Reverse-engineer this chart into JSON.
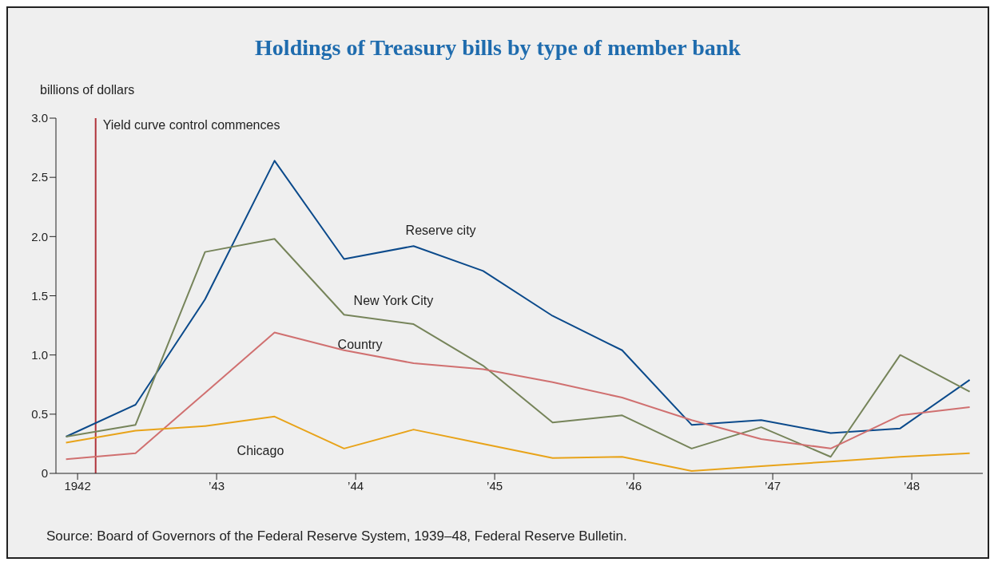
{
  "chart_data": {
    "type": "line",
    "title": "Holdings of Treasury bills by type of member bank",
    "ylabel": "billions of dollars",
    "x": [
      "1941-12",
      "1942-06",
      "1942-12",
      "1943-06",
      "1943-12",
      "1944-06",
      "1944-12",
      "1945-06",
      "1945-12",
      "1946-06",
      "1946-12",
      "1947-06",
      "1947-12",
      "1948-06"
    ],
    "series": [
      {
        "name": "Reserve city",
        "color": "#0b4a8b",
        "values": [
          0.31,
          0.58,
          1.47,
          2.64,
          1.81,
          1.92,
          1.71,
          1.33,
          1.04,
          0.41,
          0.45,
          0.34,
          0.38,
          0.79
        ]
      },
      {
        "name": "New York City",
        "color": "#76845a",
        "values": [
          0.31,
          0.41,
          1.87,
          1.98,
          1.34,
          1.26,
          0.91,
          0.43,
          0.49,
          0.21,
          0.39,
          0.14,
          1.0,
          0.69
        ]
      },
      {
        "name": "Country",
        "color": "#d07070",
        "values": [
          0.12,
          0.17,
          0.68,
          1.19,
          1.04,
          0.93,
          0.88,
          0.77,
          0.64,
          0.45,
          0.29,
          0.21,
          0.49,
          0.56
        ]
      },
      {
        "name": "Chicago",
        "color": "#e8a319",
        "values": [
          0.26,
          0.36,
          0.4,
          0.48,
          0.21,
          0.37,
          0.25,
          0.13,
          0.14,
          0.02,
          0.06,
          0.1,
          0.14,
          0.17
        ]
      }
    ],
    "xlim": [
      "1941-11-05",
      "1948-07-05"
    ],
    "xticks": [
      {
        "value": "1942-01",
        "label": "1942"
      },
      {
        "value": "1943-01",
        "label": "’43"
      },
      {
        "value": "1944-01",
        "label": "’44"
      },
      {
        "value": "1945-01",
        "label": "’45"
      },
      {
        "value": "1946-01",
        "label": "’46"
      },
      {
        "value": "1947-01",
        "label": "’47"
      },
      {
        "value": "1948-01",
        "label": "’48"
      }
    ],
    "ylim": [
      0,
      3
    ],
    "yticks": [
      0,
      {
        "value": 0.5,
        "label": "0.5"
      },
      {
        "value": 1,
        "label": "1.0"
      },
      {
        "value": 1.5,
        "label": "1.5"
      },
      {
        "value": 2,
        "label": "2.0"
      },
      {
        "value": 2.5,
        "label": "2.5"
      },
      {
        "value": 3,
        "label": "3.0"
      }
    ],
    "ref_lines": [
      {
        "axis": "x",
        "value": "1942-02-18",
        "label": "Yield curve control commences",
        "color": "#b0323a"
      }
    ],
    "annotations": [
      "Source: Board of Governors of the Federal Reserve System, 1939–48, Federal Reserve Bulletin."
    ],
    "grid": false,
    "legend": false,
    "marker": "none",
    "line_style": "solid"
  }
}
